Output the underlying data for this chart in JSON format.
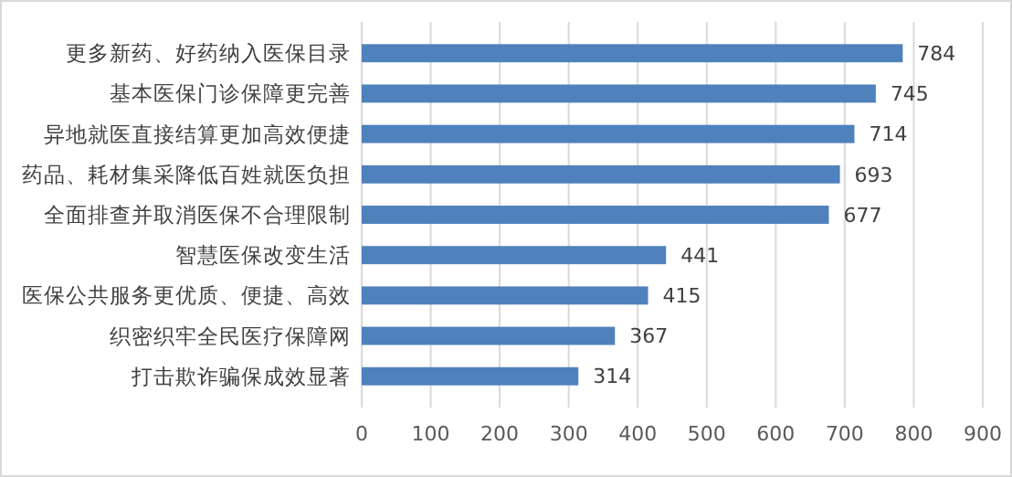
{
  "chart_data": {
    "type": "bar",
    "orientation": "horizontal",
    "categories": [
      "更多新药、好药纳入医保目录",
      "基本医保门诊保障更完善",
      "异地就医直接结算更加高效便捷",
      "药品、耗材集采降低百姓就医负担",
      "全面排查并取消医保不合理限制",
      "智慧医保改变生活",
      "医保公共服务更优质、便捷、高效",
      "织密织牢全民医疗保障网",
      "打击欺诈骗保成效显著"
    ],
    "values": [
      784,
      745,
      714,
      693,
      677,
      441,
      415,
      367,
      314
    ],
    "color": "#4f81bd",
    "xlim": [
      0,
      900
    ],
    "xticks": [
      0,
      100,
      200,
      300,
      400,
      500,
      600,
      700,
      800,
      900
    ],
    "grid": "x",
    "data_labels": true
  }
}
